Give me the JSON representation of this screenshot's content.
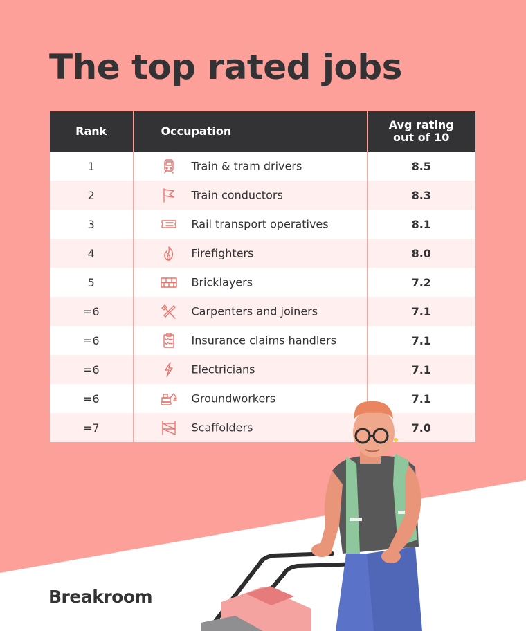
{
  "chart_data": {
    "type": "table",
    "title": "The top rated jobs",
    "columns": [
      "Rank",
      "Occupation",
      "Avg rating out of 10"
    ],
    "rows": [
      {
        "rank": "1",
        "occupation": "Train & tram drivers",
        "rating": "8.5",
        "icon": "train-icon"
      },
      {
        "rank": "2",
        "occupation": "Train conductors",
        "rating": "8.3",
        "icon": "flag-icon"
      },
      {
        "rank": "3",
        "occupation": "Rail transport operatives",
        "rating": "8.1",
        "icon": "ticket-icon"
      },
      {
        "rank": "4",
        "occupation": "Firefighters",
        "rating": "8.0",
        "icon": "flame-icon"
      },
      {
        "rank": "5",
        "occupation": "Bricklayers",
        "rating": "7.2",
        "icon": "bricks-icon"
      },
      {
        "rank": "=6",
        "occupation": "Carpenters and joiners",
        "rating": "7.1",
        "icon": "hammer-icon"
      },
      {
        "rank": "=6",
        "occupation": "Insurance claims handlers",
        "rating": "7.1",
        "icon": "clipboard-icon"
      },
      {
        "rank": "=6",
        "occupation": "Electricians",
        "rating": "7.1",
        "icon": "lightning-icon"
      },
      {
        "rank": "=6",
        "occupation": "Groundworkers",
        "rating": "7.1",
        "icon": "excavator-icon"
      },
      {
        "rank": "=7",
        "occupation": "Scaffolders",
        "rating": "7.0",
        "icon": "scaffold-icon"
      }
    ]
  },
  "header": {
    "rank": "Rank",
    "occupation": "Occupation",
    "rating_line1": "Avg rating",
    "rating_line2": "out of 10"
  },
  "brand": {
    "name": "Breakroom"
  },
  "colors": {
    "background": "#fea09a",
    "header": "#333336",
    "stripe": "#fff0ef",
    "icon": "#e8756d"
  }
}
